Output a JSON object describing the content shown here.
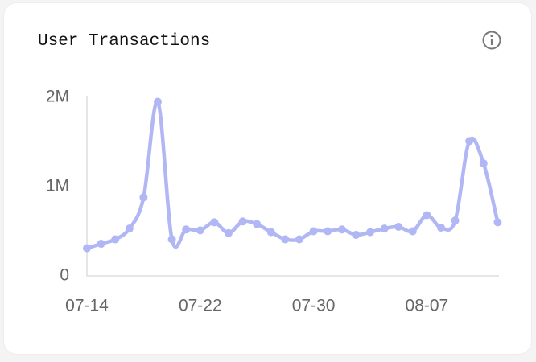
{
  "chart_data": {
    "type": "line",
    "title": "User Transactions",
    "categories": [
      "07-14",
      null,
      null,
      null,
      null,
      null,
      null,
      null,
      "07-22",
      null,
      null,
      null,
      null,
      null,
      null,
      null,
      "07-30",
      null,
      null,
      null,
      null,
      null,
      null,
      null,
      "08-07",
      null,
      null,
      null,
      null,
      null
    ],
    "values": [
      310000,
      360000,
      410000,
      530000,
      880000,
      1950000,
      410000,
      520000,
      510000,
      600000,
      480000,
      610000,
      580000,
      490000,
      410000,
      410000,
      500000,
      500000,
      520000,
      460000,
      490000,
      530000,
      550000,
      500000,
      680000,
      540000,
      620000,
      1510000,
      1260000,
      600000
    ],
    "color": "#b1b7f5",
    "ylim": [
      0,
      2000000
    ],
    "yticks": [
      0,
      {
        "value": 1000000,
        "label": "1M"
      },
      {
        "value": 2000000,
        "label": "2M"
      }
    ]
  }
}
